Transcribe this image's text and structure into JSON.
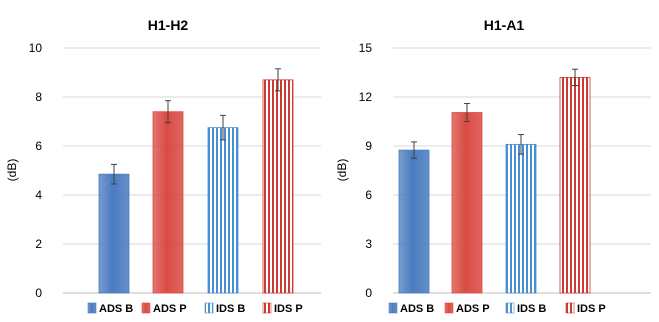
{
  "chart_data": [
    {
      "type": "bar",
      "title": "H1-H2",
      "xlabel": "",
      "ylabel": "(dB)",
      "ylim": [
        0,
        10
      ],
      "yticks": [
        0,
        2,
        4,
        6,
        8,
        10
      ],
      "categories": [
        "ADS B",
        "ADS P",
        "IDS B",
        "IDS P"
      ],
      "values": [
        4.85,
        7.4,
        6.75,
        8.7
      ],
      "errors": [
        0.4,
        0.45,
        0.5,
        0.45
      ],
      "colors": [
        "#4a7cc0",
        "#d94b43",
        "#4a8fd0",
        "#cc3b33"
      ],
      "patterns": [
        "solid",
        "solid",
        "stripes",
        "stripes"
      ],
      "grid": true,
      "legend": "bottom"
    },
    {
      "type": "bar",
      "title": "H1-A1",
      "xlabel": "",
      "ylabel": "(dB)",
      "ylim": [
        0,
        15
      ],
      "yticks": [
        0,
        3,
        6,
        9,
        12,
        15
      ],
      "categories": [
        "ADS B",
        "ADS P",
        "IDS B",
        "IDS P"
      ],
      "values": [
        8.75,
        11.05,
        9.1,
        13.2
      ],
      "errors": [
        0.5,
        0.55,
        0.6,
        0.5
      ],
      "colors": [
        "#4a7cc0",
        "#d94b43",
        "#4a8fd0",
        "#cc3b33"
      ],
      "patterns": [
        "solid",
        "solid",
        "stripes",
        "stripes"
      ],
      "grid": true,
      "legend": "bottom"
    }
  ]
}
